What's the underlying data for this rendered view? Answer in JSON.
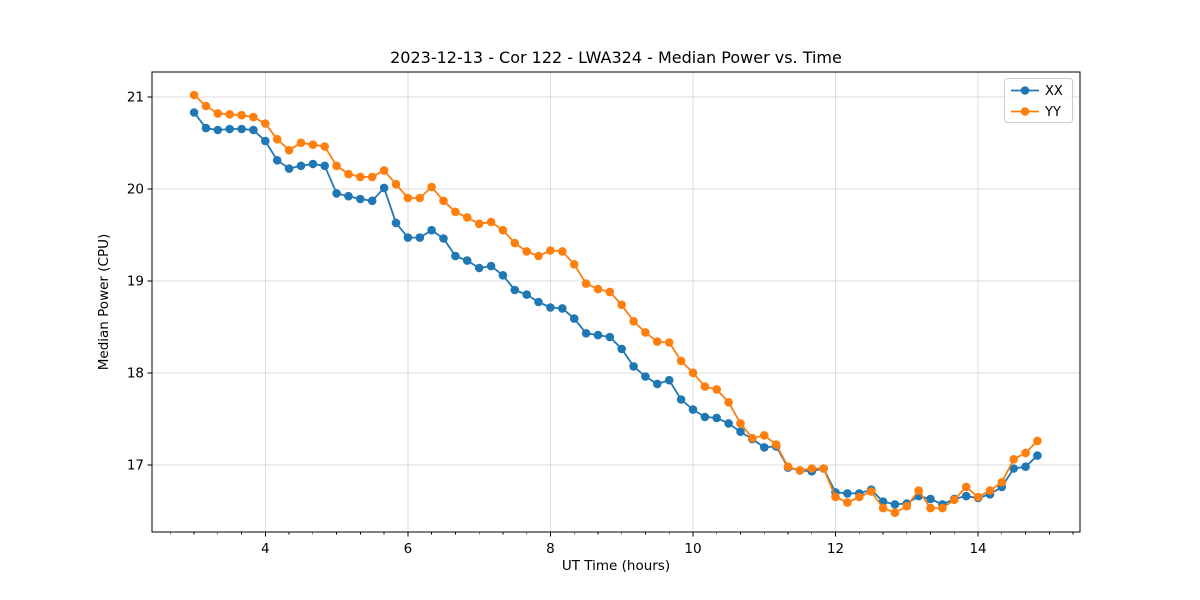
{
  "chart_data": {
    "type": "line",
    "title": "2023-12-13 - Cor 122 - LWA324 - Median Power vs. Time",
    "xlabel": "UT Time (hours)",
    "ylabel": "Median Power (CPU)",
    "xlim": [
      2.41,
      15.43
    ],
    "ylim": [
      16.27,
      21.27
    ],
    "xticks": [
      4,
      6,
      8,
      10,
      12,
      14
    ],
    "yticks": [
      17,
      18,
      19,
      20,
      21
    ],
    "x_minor_tick_step_hours": 0.3333,
    "grid": true,
    "grid_color": "#dcdcdc",
    "background": "#ffffff",
    "legend": {
      "position": "upper-right",
      "entries": [
        "XX",
        "YY"
      ]
    },
    "x_hours": [
      3,
      3.167,
      3.333,
      3.5,
      3.667,
      3.833,
      4,
      4.167,
      4.333,
      4.5,
      4.667,
      4.833,
      5,
      5.167,
      5.333,
      5.5,
      5.667,
      5.833,
      6,
      6.167,
      6.333,
      6.5,
      6.667,
      6.833,
      7,
      7.167,
      7.333,
      7.5,
      7.667,
      7.833,
      8,
      8.167,
      8.333,
      8.5,
      8.667,
      8.833,
      9,
      9.167,
      9.333,
      9.5,
      9.667,
      9.833,
      10,
      10.167,
      10.333,
      10.5,
      10.667,
      10.833,
      11,
      11.167,
      11.333,
      11.5,
      11.667,
      11.833,
      12,
      12.167,
      12.333,
      12.5,
      12.667,
      12.833,
      13,
      13.167,
      13.333,
      13.5,
      13.667,
      13.833,
      14,
      14.167,
      14.333,
      14.5,
      14.667,
      14.833
    ],
    "series": [
      {
        "name": "XX",
        "color": "#1f77b4",
        "marker": "circle",
        "values": [
          20.83,
          20.66,
          20.64,
          20.65,
          20.65,
          20.64,
          20.52,
          20.31,
          20.22,
          20.25,
          20.27,
          20.25,
          19.95,
          19.92,
          19.89,
          19.87,
          20.01,
          19.63,
          19.47,
          19.47,
          19.55,
          19.46,
          19.27,
          19.22,
          19.14,
          19.16,
          19.06,
          18.9,
          18.85,
          18.77,
          18.71,
          18.7,
          18.59,
          18.43,
          18.41,
          18.39,
          18.26,
          18.07,
          17.96,
          17.88,
          17.92,
          17.71,
          17.6,
          17.52,
          17.51,
          17.45,
          17.36,
          17.28,
          17.19,
          17.2,
          16.97,
          16.94,
          16.93,
          16.96,
          16.7,
          16.69,
          16.69,
          16.73,
          16.6,
          16.57,
          16.58,
          16.66,
          16.63,
          16.57,
          16.63,
          16.66,
          16.64,
          16.68,
          16.76,
          16.96,
          16.98,
          17.1
        ]
      },
      {
        "name": "YY",
        "color": "#ff7f0e",
        "marker": "circle",
        "values": [
          21.02,
          20.9,
          20.82,
          20.81,
          20.8,
          20.78,
          20.71,
          20.54,
          20.42,
          20.5,
          20.48,
          20.46,
          20.25,
          20.16,
          20.13,
          20.13,
          20.2,
          20.05,
          19.9,
          19.9,
          20.02,
          19.87,
          19.75,
          19.69,
          19.62,
          19.64,
          19.55,
          19.41,
          19.32,
          19.27,
          19.33,
          19.32,
          19.18,
          18.97,
          18.91,
          18.88,
          18.74,
          18.56,
          18.44,
          18.34,
          18.33,
          18.13,
          18.0,
          17.85,
          17.82,
          17.68,
          17.45,
          17.29,
          17.32,
          17.22,
          16.98,
          16.94,
          16.96,
          16.96,
          16.65,
          16.59,
          16.65,
          16.71,
          16.53,
          16.48,
          16.55,
          16.72,
          16.53,
          16.53,
          16.62,
          16.76,
          16.65,
          16.72,
          16.81,
          17.06,
          17.13,
          17.26
        ]
      }
    ]
  }
}
